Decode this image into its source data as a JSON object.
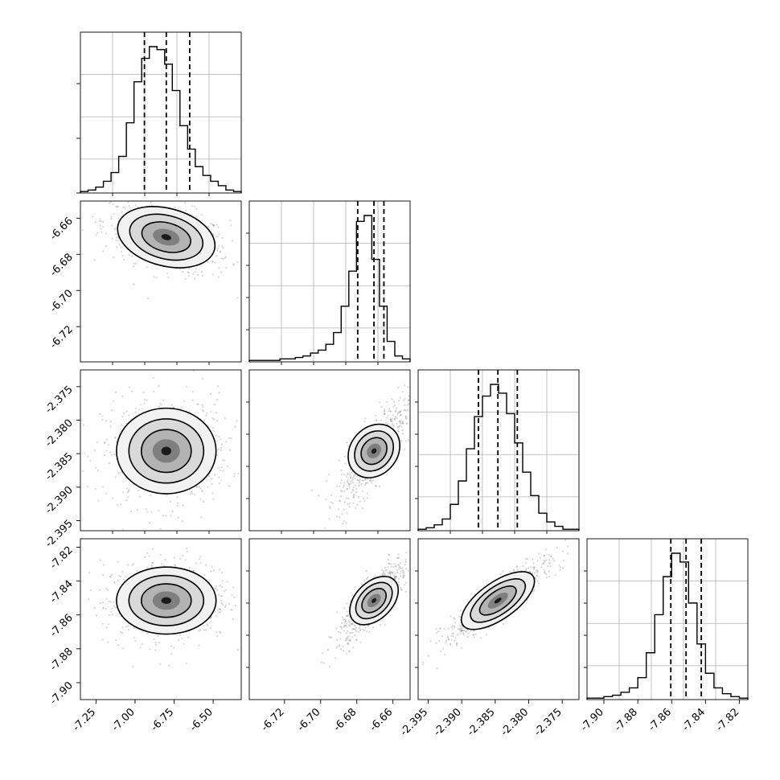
{
  "chart_data": {
    "type": "corner",
    "parameters": [
      {
        "range": [
          -7.35,
          -6.32
        ],
        "ticks": [
          "-7.25",
          "-7.00",
          "-6.75",
          "-6.50"
        ],
        "tick_values": [
          -7.25,
          -7.0,
          -6.75,
          -6.5
        ],
        "quantiles": [
          -6.94,
          -6.8,
          -6.65
        ]
      },
      {
        "range": [
          -6.7395,
          -6.6505
        ],
        "ticks": [
          "-6.72",
          "-6.70",
          "-6.68",
          "-6.66"
        ],
        "tick_values": [
          -6.72,
          -6.7,
          -6.68,
          -6.66
        ],
        "quantiles": [
          -6.6795,
          -6.6705,
          -6.665
        ]
      },
      {
        "range": [
          -2.3965,
          -2.3725
        ],
        "ticks": [
          "-2.395",
          "-2.390",
          "-2.385",
          "-2.380",
          "-2.375"
        ],
        "tick_values": [
          -2.395,
          -2.39,
          -2.385,
          -2.38,
          -2.375
        ],
        "quantiles": [
          -2.3875,
          -2.3846,
          -2.3817
        ]
      },
      {
        "range": [
          -7.91,
          -7.815
        ],
        "ticks": [
          "-7.90",
          "-7.88",
          "-7.86",
          "-7.84",
          "-7.82"
        ],
        "tick_values": [
          -7.9,
          -7.88,
          -7.86,
          -7.84,
          -7.82
        ],
        "quantiles": [
          -7.8605,
          -7.8515,
          -7.8425
        ]
      }
    ],
    "histograms": [
      [
        1,
        2,
        4,
        8,
        14,
        25,
        48,
        76,
        92,
        100,
        98,
        88,
        70,
        46,
        30,
        18,
        12,
        8,
        5,
        2,
        1
      ],
      [
        1,
        1,
        1,
        1,
        2,
        2,
        3,
        4,
        6,
        8,
        12,
        20,
        38,
        62,
        96,
        100,
        70,
        38,
        14,
        4,
        2
      ],
      [
        1,
        2,
        4,
        8,
        18,
        34,
        56,
        78,
        92,
        100,
        94,
        80,
        60,
        40,
        24,
        12,
        6,
        3,
        1,
        1
      ],
      [
        1,
        1,
        2,
        3,
        5,
        8,
        15,
        32,
        58,
        84,
        100,
        94,
        66,
        38,
        18,
        8,
        4,
        2,
        1
      ]
    ],
    "grid": true,
    "xlabel": "",
    "ylabel": "",
    "title": ""
  }
}
